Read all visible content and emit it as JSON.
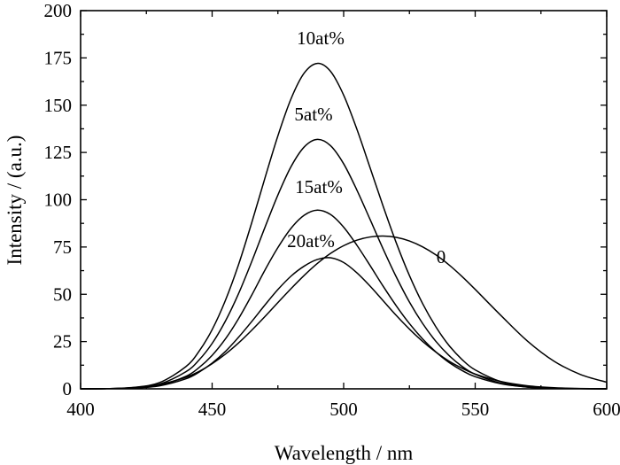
{
  "chart_data": {
    "type": "line",
    "xlabel": "Wavelength / nm",
    "ylabel": "Intensity / (a.u.)",
    "xlim": [
      400,
      600
    ],
    "ylim": [
      0,
      200
    ],
    "xticks": [
      400,
      450,
      500,
      550,
      600
    ],
    "yticks": [
      0,
      25,
      50,
      75,
      100,
      125,
      150,
      175,
      200
    ],
    "grid": false,
    "x": [
      400,
      410,
      420,
      430,
      440,
      445,
      450,
      455,
      460,
      465,
      470,
      475,
      480,
      485,
      490,
      495,
      500,
      505,
      510,
      515,
      520,
      525,
      530,
      535,
      540,
      545,
      550,
      560,
      570,
      580,
      590,
      600
    ],
    "series": [
      {
        "name": "10at%",
        "values": [
          0,
          0.1,
          0.7,
          3.3,
          11.7,
          19.8,
          31.3,
          46.6,
          65.5,
          87.6,
          111.1,
          133.8,
          153.4,
          167.0,
          172.1,
          167.9,
          155.3,
          137.4,
          117.1,
          96.6,
          77.2,
          59.9,
          45.1,
          32.9,
          23.0,
          15.5,
          10.0,
          3.7,
          1.2,
          0.3,
          0.1,
          0
        ]
      },
      {
        "name": "5at%",
        "values": [
          0,
          0.1,
          0.5,
          2.5,
          9.0,
          15.2,
          24.0,
          35.7,
          50.2,
          67.1,
          85.1,
          102.5,
          117.5,
          127.9,
          131.9,
          128.6,
          119.0,
          105.2,
          89.7,
          74.0,
          59.2,
          45.9,
          34.6,
          25.2,
          17.7,
          11.9,
          7.7,
          2.9,
          0.9,
          0.3,
          0.1,
          0
        ]
      },
      {
        "name": "15at%",
        "values": [
          0,
          0.1,
          0.4,
          1.9,
          6.6,
          11.2,
          17.7,
          26.3,
          37.0,
          49.4,
          62.6,
          74.7,
          84.9,
          91.8,
          94.5,
          92.2,
          85.5,
          76.0,
          65.3,
          54.3,
          43.9,
          34.5,
          26.4,
          19.6,
          14.0,
          9.7,
          6.4,
          2.6,
          0.9,
          0.3,
          0.1,
          0
        ]
      },
      {
        "name": "20at%",
        "values": [
          0,
          0.1,
          0.4,
          1.6,
          5.3,
          8.8,
          13.6,
          19.7,
          27.2,
          35.5,
          44.2,
          52.5,
          59.6,
          64.9,
          68.4,
          69.3,
          66.8,
          61.4,
          54.4,
          46.6,
          38.8,
          31.6,
          25.1,
          19.5,
          14.7,
          10.9,
          7.8,
          3.8,
          1.6,
          0.6,
          0.2,
          0
        ]
      },
      {
        "name": "0",
        "values": [
          0,
          0.1,
          0.7,
          2.3,
          6.1,
          9.2,
          13.3,
          18.3,
          24.2,
          30.9,
          38.1,
          45.6,
          53.0,
          60.0,
          66.3,
          71.6,
          75.7,
          78.6,
          80.3,
          80.8,
          80.1,
          78.2,
          75.1,
          70.9,
          65.6,
          59.4,
          52.6,
          38.5,
          25.1,
          14.6,
          7.6,
          3.5
        ]
      }
    ]
  }
}
